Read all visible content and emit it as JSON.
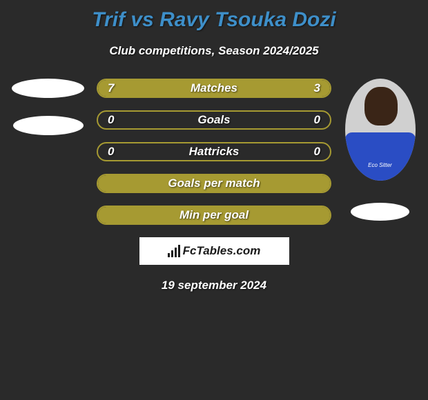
{
  "title": "Trif vs Ravy Tsouka Dozi",
  "title_color": "#3e8fc9",
  "subtitle": "Club competitions, Season 2024/2025",
  "background_color": "#2a2a2a",
  "text_color": "#ffffff",
  "stats": [
    {
      "label": "Matches",
      "left_value": "7",
      "right_value": "3",
      "left_fill_pct": 70,
      "right_fill_pct": 30,
      "left_fill_color": "#a69a32",
      "right_fill_color": "#a69a32",
      "border_color": "#a69a32"
    },
    {
      "label": "Goals",
      "left_value": "0",
      "right_value": "0",
      "left_fill_pct": 0,
      "right_fill_pct": 0,
      "left_fill_color": "#a69a32",
      "right_fill_color": "#a69a32",
      "border_color": "#a69a32"
    },
    {
      "label": "Hattricks",
      "left_value": "0",
      "right_value": "0",
      "left_fill_pct": 0,
      "right_fill_pct": 0,
      "left_fill_color": "#a69a32",
      "right_fill_color": "#a69a32",
      "border_color": "#a69a32"
    },
    {
      "label": "Goals per match",
      "left_value": "",
      "right_value": "",
      "left_fill_pct": 100,
      "right_fill_pct": 0,
      "left_fill_color": "#a69a32",
      "right_fill_color": "#a69a32",
      "border_color": "#a69a32"
    },
    {
      "label": "Min per goal",
      "left_value": "",
      "right_value": "",
      "left_fill_pct": 100,
      "right_fill_pct": 0,
      "left_fill_color": "#a69a32",
      "right_fill_color": "#a69a32",
      "border_color": "#a69a32"
    }
  ],
  "watermark": {
    "text": "FcTables.com",
    "icon_bars": [
      6,
      10,
      14,
      18
    ]
  },
  "date": "19 september 2024",
  "left_player": {
    "oval_color": "#ffffff"
  },
  "right_player": {
    "jersey_color": "#2a4dc4",
    "skin_color": "#3a2517",
    "sponsor_text": "Eco Sitter",
    "oval_color": "#ffffff"
  }
}
